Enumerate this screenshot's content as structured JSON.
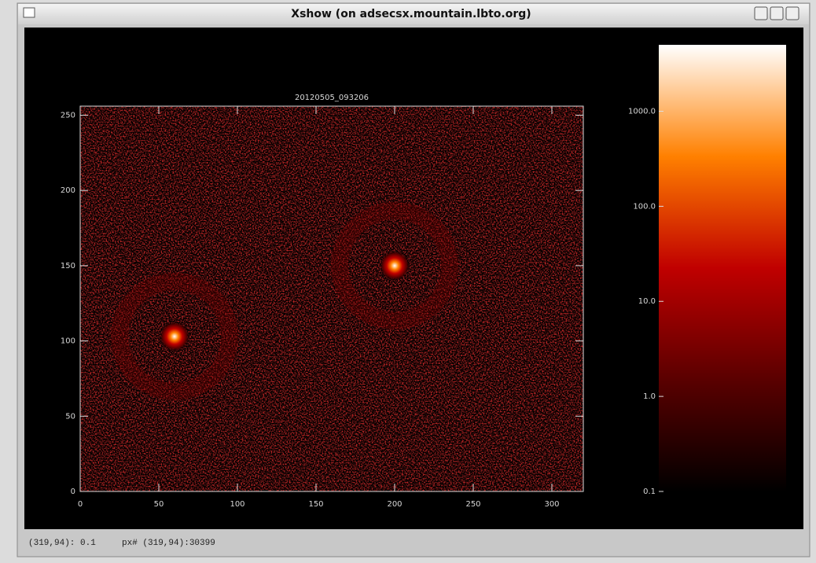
{
  "window": {
    "title": "Xshow (on adsecsx.mountain.lbto.org)"
  },
  "status": {
    "cursor": "(319,94): 0.1",
    "pixel": "px# (319,94):30399"
  },
  "chart_data": {
    "type": "image",
    "title": "20120505_093206",
    "xlim": [
      0,
      320
    ],
    "ylim": [
      0,
      256
    ],
    "xticks": [
      0,
      50,
      100,
      150,
      200,
      250,
      300
    ],
    "yticks": [
      0,
      50,
      100,
      150,
      200,
      250
    ],
    "colorbar": {
      "scale": "log",
      "lim": [
        0.1,
        5000
      ],
      "ticks": [
        0.1,
        {
          "value": 1,
          "label": "1.0"
        },
        {
          "value": 10,
          "label": "10.0"
        },
        {
          "value": 100,
          "label": "100.0"
        },
        {
          "value": 1000,
          "label": "1000.0"
        }
      ],
      "colors": [
        "#000000",
        "#5a0000",
        "#c00000",
        "#ff8000",
        "#ffffff"
      ]
    },
    "sources": {
      "x": [
        60,
        200
      ],
      "y": [
        103,
        150
      ]
    }
  }
}
